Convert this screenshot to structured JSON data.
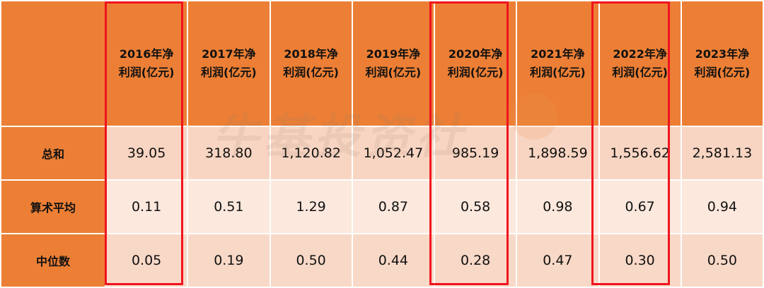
{
  "table": {
    "header": [
      "",
      "2016年净利润(亿元)",
      "2017年净利润(亿元)",
      "2018年净利润(亿元)",
      "2019年净利润(亿元)",
      "2020年净利润(亿元)",
      "2021年净利润(亿元)",
      "2022年净利润(亿元)",
      "2023年净利润(亿元)"
    ],
    "rows": [
      [
        "总和",
        "39.05",
        "318.80",
        "1,120.82",
        "1,052.47",
        "985.19",
        "1,898.59",
        "1,556.62",
        "2,581.13"
      ],
      [
        "算术平均",
        "0.11",
        "0.51",
        "1.29",
        "0.87",
        "0.58",
        "0.98",
        "0.67",
        "0.94"
      ],
      [
        "中位数",
        "0.05",
        "0.19",
        "0.50",
        "0.44",
        "0.28",
        "0.47",
        "0.30",
        "0.50"
      ]
    ]
  },
  "watermark": "牛基投资社"
}
